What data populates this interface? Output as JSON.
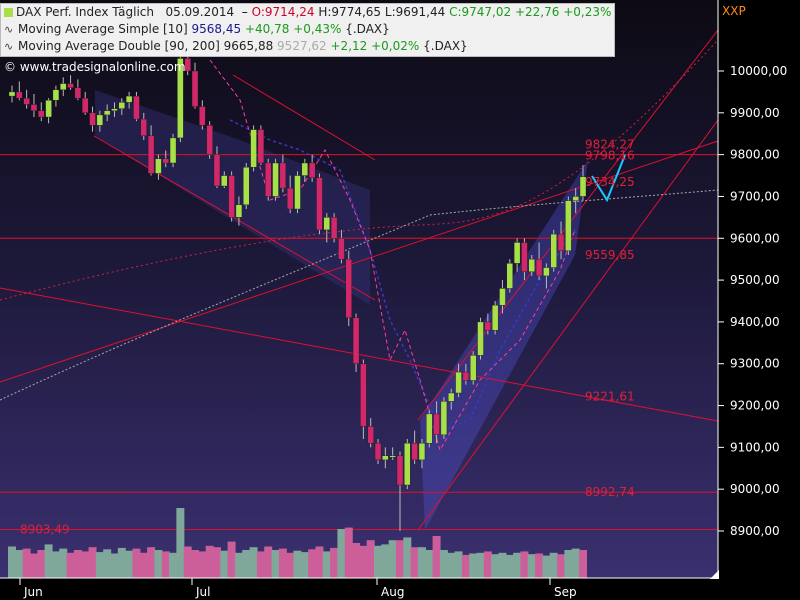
{
  "header": {
    "title": "DAX Perf. Index Täglich",
    "date": "05.09.2014",
    "open": "O:9714,24",
    "high": "H:9774,65",
    "low": "L:9691,44",
    "close": "C:9747,02",
    "change": "+22,76",
    "change_pct": "+0,23%",
    "ma_simple_label": "Moving Average Simple [10]",
    "ma_simple_value": "9568,45",
    "ma_simple_change": "+40,78",
    "ma_simple_pct": "+0,43%",
    "ma_simple_symbol": "{.DAX}",
    "ma_double_label": "Moving Average Double [90, 200]",
    "ma_double_value1": "9665,88",
    "ma_double_value2": "9527,62",
    "ma_double_change": "+2,12",
    "ma_double_pct": "+0,02%",
    "ma_double_symbol": "{.DAX}"
  },
  "watermark": "© www.tradesignalonline.com",
  "axis_title": "XXP",
  "colors": {
    "up_candle": "#a8e04a",
    "down_candle": "#d0286a",
    "volume_up": "#7fa89a",
    "volume_down": "#cc5f9a",
    "horizontal_lines": "#e0102a",
    "forecast": "#1ec8ff",
    "price_label": "#e0203a",
    "axis_text": "#ffffff"
  },
  "chart_data": {
    "type": "candlestick",
    "title": "DAX Perf. Index Täglich",
    "x_tick_labels": [
      "Jun",
      "Jul",
      "Aug",
      "Sep"
    ],
    "y_ticks": [
      "8900,00",
      "9000,00",
      "9100,00",
      "9200,00",
      "9300,00",
      "9400,00",
      "9500,00",
      "9600,00",
      "9700,00",
      "9800,00",
      "9900,00",
      "10000,00"
    ],
    "ylim": [
      8820,
      10120
    ],
    "horizontal_levels": [
      9800,
      9600,
      8992.74,
      8903.49
    ],
    "level_labels": [
      {
        "text": "9824,27",
        "value": 9824.27
      },
      {
        "text": "9798,16",
        "value": 9798.16
      },
      {
        "text": "9734,25",
        "value": 9734.25
      },
      {
        "text": "9559,85",
        "value": 9559.85
      },
      {
        "text": "9221,61",
        "value": 9221.61
      },
      {
        "text": "8992,74",
        "value": 8992.74
      },
      {
        "text": "8903,49",
        "value": 8903.49
      }
    ],
    "candles": [
      [
        9940,
        9965,
        9925,
        9950
      ],
      [
        9950,
        9975,
        9930,
        9935
      ],
      [
        9935,
        9955,
        9910,
        9920
      ],
      [
        9920,
        9945,
        9890,
        9905
      ],
      [
        9905,
        9925,
        9880,
        9890
      ],
      [
        9890,
        9935,
        9875,
        9930
      ],
      [
        9930,
        9965,
        9915,
        9955
      ],
      [
        9955,
        9985,
        9940,
        9970
      ],
      [
        9970,
        9990,
        9955,
        9960
      ],
      [
        9960,
        9980,
        9930,
        9935
      ],
      [
        9935,
        9950,
        9895,
        9900
      ],
      [
        9900,
        9915,
        9855,
        9870
      ],
      [
        9870,
        9905,
        9855,
        9895
      ],
      [
        9895,
        9920,
        9880,
        9905
      ],
      [
        9905,
        9925,
        9890,
        9910
      ],
      [
        9910,
        9935,
        9895,
        9925
      ],
      [
        9925,
        9950,
        9910,
        9940
      ],
      [
        9940,
        9950,
        9880,
        9885
      ],
      [
        9885,
        9900,
        9835,
        9845
      ],
      [
        9845,
        9870,
        9750,
        9755
      ],
      [
        9755,
        9800,
        9740,
        9790
      ],
      [
        9790,
        9810,
        9770,
        9780
      ],
      [
        9780,
        9850,
        9770,
        9840
      ],
      [
        9840,
        10050,
        9830,
        10030
      ],
      [
        10030,
        10050,
        9990,
        10000
      ],
      [
        10000,
        10020,
        9910,
        9915
      ],
      [
        9915,
        9930,
        9860,
        9870
      ],
      [
        9870,
        9880,
        9790,
        9800
      ],
      [
        9800,
        9820,
        9720,
        9725
      ],
      [
        9725,
        9760,
        9720,
        9750
      ],
      [
        9750,
        9760,
        9640,
        9650
      ],
      [
        9650,
        9700,
        9630,
        9680
      ],
      [
        9680,
        9780,
        9670,
        9770
      ],
      [
        9770,
        9870,
        9760,
        9860
      ],
      [
        9860,
        9870,
        9775,
        9780
      ],
      [
        9780,
        9790,
        9690,
        9700
      ],
      [
        9700,
        9790,
        9690,
        9780
      ],
      [
        9780,
        9800,
        9710,
        9720
      ],
      [
        9720,
        9750,
        9660,
        9670
      ],
      [
        9670,
        9760,
        9660,
        9750
      ],
      [
        9750,
        9790,
        9735,
        9780
      ],
      [
        9780,
        9800,
        9735,
        9745
      ],
      [
        9745,
        9755,
        9610,
        9620
      ],
      [
        9620,
        9660,
        9590,
        9650
      ],
      [
        9650,
        9660,
        9590,
        9600
      ],
      [
        9600,
        9620,
        9540,
        9550
      ],
      [
        9550,
        9570,
        9390,
        9410
      ],
      [
        9410,
        9420,
        9280,
        9300
      ],
      [
        9300,
        9310,
        9120,
        9150
      ],
      [
        9150,
        9170,
        9100,
        9110
      ],
      [
        9110,
        9120,
        9060,
        9070
      ],
      [
        9070,
        9100,
        9050,
        9080
      ],
      [
        9080,
        9100,
        9070,
        9080
      ],
      [
        9080,
        9090,
        8900,
        9010
      ],
      [
        9010,
        9120,
        9000,
        9110
      ],
      [
        9110,
        9140,
        9060,
        9070
      ],
      [
        9070,
        9120,
        9050,
        9110
      ],
      [
        9110,
        9190,
        9100,
        9180
      ],
      [
        9180,
        9210,
        9110,
        9130
      ],
      [
        9130,
        9220,
        9120,
        9210
      ],
      [
        9210,
        9240,
        9190,
        9230
      ],
      [
        9230,
        9300,
        9220,
        9280
      ],
      [
        9280,
        9300,
        9250,
        9260
      ],
      [
        9260,
        9330,
        9250,
        9320
      ],
      [
        9320,
        9410,
        9310,
        9400
      ],
      [
        9400,
        9420,
        9370,
        9380
      ],
      [
        9380,
        9450,
        9370,
        9440
      ],
      [
        9440,
        9500,
        9420,
        9480
      ],
      [
        9480,
        9550,
        9470,
        9540
      ],
      [
        9540,
        9600,
        9520,
        9590
      ],
      [
        9590,
        9600,
        9500,
        9520
      ],
      [
        9520,
        9560,
        9510,
        9550
      ],
      [
        9550,
        9590,
        9500,
        9510
      ],
      [
        9510,
        9540,
        9480,
        9530
      ],
      [
        9530,
        9620,
        9520,
        9610
      ],
      [
        9610,
        9640,
        9550,
        9570
      ],
      [
        9570,
        9700,
        9560,
        9690
      ],
      [
        9690,
        9720,
        9660,
        9700
      ],
      [
        9700,
        9775,
        9690,
        9747
      ]
    ],
    "volume": [
      {
        "value": 0.45,
        "up": true
      },
      {
        "value": 0.4,
        "up": true
      },
      {
        "value": 0.42,
        "up": false
      },
      {
        "value": 0.35,
        "up": false
      },
      {
        "value": 0.4,
        "up": false
      },
      {
        "value": 0.48,
        "up": true
      },
      {
        "value": 0.38,
        "up": true
      },
      {
        "value": 0.42,
        "up": true
      },
      {
        "value": 0.36,
        "up": false
      },
      {
        "value": 0.4,
        "up": false
      },
      {
        "value": 0.38,
        "up": false
      },
      {
        "value": 0.44,
        "up": false
      },
      {
        "value": 0.37,
        "up": true
      },
      {
        "value": 0.41,
        "up": true
      },
      {
        "value": 0.35,
        "up": true
      },
      {
        "value": 0.43,
        "up": true
      },
      {
        "value": 0.39,
        "up": true
      },
      {
        "value": 0.42,
        "up": false
      },
      {
        "value": 0.36,
        "up": false
      },
      {
        "value": 0.44,
        "up": false
      },
      {
        "value": 0.4,
        "up": true
      },
      {
        "value": 0.38,
        "up": false
      },
      {
        "value": 0.36,
        "up": true
      },
      {
        "value": 1.0,
        "up": true
      },
      {
        "value": 0.45,
        "up": false
      },
      {
        "value": 0.4,
        "up": false
      },
      {
        "value": 0.38,
        "up": false
      },
      {
        "value": 0.46,
        "up": false
      },
      {
        "value": 0.44,
        "up": false
      },
      {
        "value": 0.39,
        "up": true
      },
      {
        "value": 0.52,
        "up": false
      },
      {
        "value": 0.36,
        "up": true
      },
      {
        "value": 0.4,
        "up": true
      },
      {
        "value": 0.44,
        "up": true
      },
      {
        "value": 0.38,
        "up": false
      },
      {
        "value": 0.45,
        "up": false
      },
      {
        "value": 0.4,
        "up": true
      },
      {
        "value": 0.42,
        "up": false
      },
      {
        "value": 0.36,
        "up": false
      },
      {
        "value": 0.39,
        "up": true
      },
      {
        "value": 0.37,
        "up": true
      },
      {
        "value": 0.41,
        "up": false
      },
      {
        "value": 0.45,
        "up": false
      },
      {
        "value": 0.38,
        "up": true
      },
      {
        "value": 0.43,
        "up": false
      },
      {
        "value": 0.7,
        "up": true
      },
      {
        "value": 0.72,
        "up": false
      },
      {
        "value": 0.5,
        "up": false
      },
      {
        "value": 0.46,
        "up": false
      },
      {
        "value": 0.54,
        "up": false
      },
      {
        "value": 0.46,
        "up": true
      },
      {
        "value": 0.48,
        "up": true
      },
      {
        "value": 0.54,
        "up": true
      },
      {
        "value": 0.54,
        "up": false
      },
      {
        "value": 0.58,
        "up": true
      },
      {
        "value": 0.44,
        "up": false
      },
      {
        "value": 0.44,
        "up": true
      },
      {
        "value": 0.4,
        "up": true
      },
      {
        "value": 0.6,
        "up": false
      },
      {
        "value": 0.4,
        "up": true
      },
      {
        "value": 0.36,
        "up": true
      },
      {
        "value": 0.38,
        "up": true
      },
      {
        "value": 0.33,
        "up": false
      },
      {
        "value": 0.35,
        "up": true
      },
      {
        "value": 0.36,
        "up": true
      },
      {
        "value": 0.38,
        "up": false
      },
      {
        "value": 0.34,
        "up": true
      },
      {
        "value": 0.36,
        "up": true
      },
      {
        "value": 0.33,
        "up": true
      },
      {
        "value": 0.36,
        "up": true
      },
      {
        "value": 0.38,
        "up": false
      },
      {
        "value": 0.34,
        "up": true
      },
      {
        "value": 0.35,
        "up": false
      },
      {
        "value": 0.32,
        "up": true
      },
      {
        "value": 0.36,
        "up": true
      },
      {
        "value": 0.34,
        "up": false
      },
      {
        "value": 0.4,
        "up": true
      },
      {
        "value": 0.42,
        "up": true
      },
      {
        "value": 0.4,
        "up": false
      }
    ]
  }
}
